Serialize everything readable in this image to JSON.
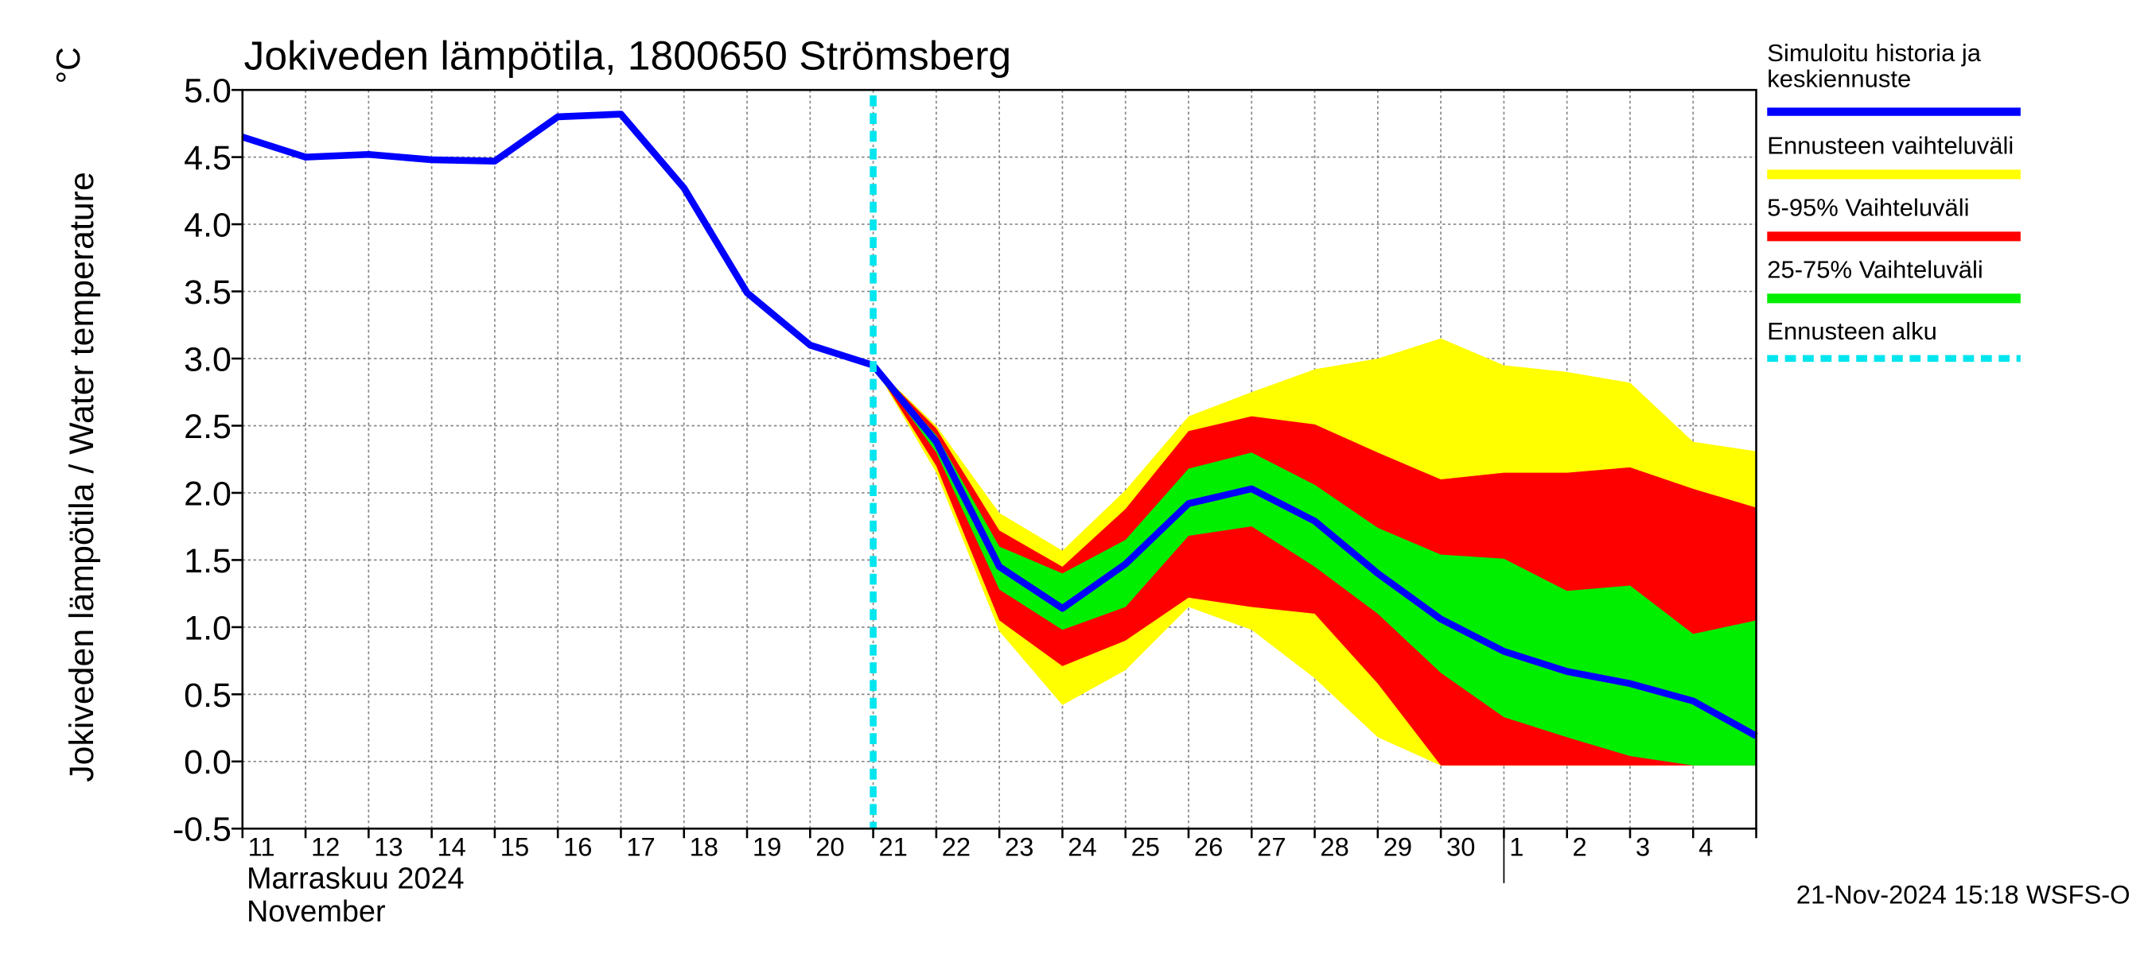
{
  "chart_data": {
    "type": "line",
    "title": "Jokiveden lämpötila, 1800650 Strömsberg",
    "y_label": "Jokiveden lämpötila / Water temperature",
    "y_unit": "°C",
    "x_label_lines": [
      "Marraskuu 2024",
      "November"
    ],
    "footer": "21-Nov-2024 15:18 WSFS-O",
    "x": [
      "11",
      "12",
      "13",
      "14",
      "15",
      "16",
      "17",
      "18",
      "19",
      "20",
      "21",
      "22",
      "23",
      "24",
      "25",
      "26",
      "27",
      "28",
      "29",
      "30",
      "1",
      "2",
      "3",
      "4",
      null
    ],
    "ylim": [
      -0.5,
      5.0
    ],
    "yticks": [
      -0.5,
      {
        "value": 0,
        "label": "0.0"
      },
      0.5,
      {
        "value": 1,
        "label": "1.0"
      },
      1.5,
      {
        "value": 2,
        "label": "2.0"
      },
      2.5,
      {
        "value": 3,
        "label": "3.0"
      },
      3.5,
      {
        "value": 4,
        "label": "4.0"
      },
      4.5,
      {
        "value": 5,
        "label": "5.0"
      }
    ],
    "grid": true,
    "legend": "right",
    "bands": [
      {
        "name": "Ennusteen vaihteluväli",
        "color": "#ffff00",
        "upper": [
          null,
          null,
          null,
          null,
          null,
          null,
          null,
          null,
          null,
          null,
          2.95,
          2.5,
          1.85,
          1.57,
          2.02,
          2.57,
          2.75,
          2.92,
          3.0,
          3.15,
          2.95,
          2.9,
          2.82,
          2.38,
          2.31
        ],
        "lower": [
          null,
          null,
          null,
          null,
          null,
          null,
          null,
          null,
          null,
          null,
          2.95,
          2.15,
          0.97,
          0.42,
          0.68,
          1.15,
          0.98,
          0.62,
          0.18,
          -0.03,
          -0.03,
          -0.03,
          -0.03,
          -0.03,
          -0.03
        ]
      },
      {
        "name": "5-95% Vaihteluväli",
        "color": "#ff0000",
        "upper": [
          null,
          null,
          null,
          null,
          null,
          null,
          null,
          null,
          null,
          null,
          2.95,
          2.48,
          1.72,
          1.45,
          1.88,
          2.46,
          2.57,
          2.51,
          2.3,
          2.1,
          2.15,
          2.15,
          2.19,
          2.03,
          1.89
        ],
        "lower": [
          null,
          null,
          null,
          null,
          null,
          null,
          null,
          null,
          null,
          null,
          2.95,
          2.2,
          1.05,
          0.71,
          0.9,
          1.22,
          1.15,
          1.1,
          0.58,
          -0.03,
          -0.03,
          -0.03,
          -0.03,
          -0.03,
          -0.03
        ]
      },
      {
        "name": "25-75% Vaihteluväli",
        "color": "#00ee00",
        "upper": [
          null,
          null,
          null,
          null,
          null,
          null,
          null,
          null,
          null,
          null,
          2.95,
          2.43,
          1.6,
          1.4,
          1.65,
          2.18,
          2.3,
          2.06,
          1.74,
          1.54,
          1.51,
          1.27,
          1.31,
          0.95,
          1.05
        ],
        "lower": [
          null,
          null,
          null,
          null,
          null,
          null,
          null,
          null,
          null,
          null,
          2.95,
          2.3,
          1.28,
          0.98,
          1.15,
          1.68,
          1.75,
          1.45,
          1.1,
          0.66,
          0.33,
          0.18,
          0.04,
          -0.03,
          -0.03
        ]
      }
    ],
    "series": [
      {
        "name": "Simuloitu historia ja keskiennuste",
        "color": "#0000ff",
        "values": [
          4.65,
          4.5,
          4.52,
          4.48,
          4.47,
          4.8,
          4.82,
          4.27,
          3.49,
          3.1,
          2.95,
          2.38,
          1.45,
          1.14,
          1.47,
          1.92,
          2.03,
          1.79,
          1.4,
          1.06,
          0.82,
          0.67,
          0.58,
          0.45,
          0.19
        ]
      }
    ],
    "forecast_start": {
      "name": "Ennusteen alku",
      "x": "21",
      "color": "#00e5ee"
    }
  }
}
